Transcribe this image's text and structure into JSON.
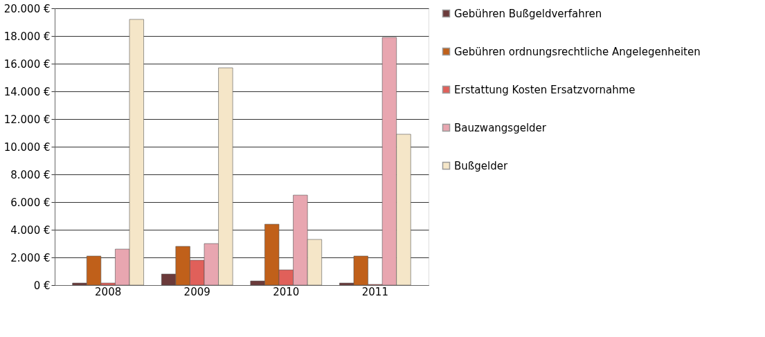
{
  "chart_data": {
    "type": "bar",
    "categories": [
      "2008",
      "2009",
      "2010",
      "2011"
    ],
    "series": [
      {
        "name": "Gebühren Bußgeldverfahren",
        "color": "#6b3a3a",
        "values": [
          150,
          800,
          300,
          150
        ]
      },
      {
        "name": "Gebühren ordnungsrechtliche Angelegenheiten",
        "color": "#c0601a",
        "values": [
          2100,
          2800,
          4400,
          2100
        ]
      },
      {
        "name": "Erstattung Kosten Ersatzvornahme",
        "color": "#e0605a",
        "values": [
          150,
          1800,
          1100,
          50
        ]
      },
      {
        "name": "Bauzwangsgelder",
        "color": "#e8a6b0",
        "values": [
          2600,
          3000,
          6500,
          17900
        ]
      },
      {
        "name": "Bußgelder",
        "color": "#f5e6c8",
        "values": [
          19200,
          15700,
          3300,
          10900
        ]
      }
    ],
    "ylim": [
      0,
      20000
    ],
    "yticks": [
      {
        "value": 0,
        "label": "0 €"
      },
      {
        "value": 2000,
        "label": "2.000 €"
      },
      {
        "value": 4000,
        "label": "4.000 €"
      },
      {
        "value": 6000,
        "label": "6.000 €"
      },
      {
        "value": 8000,
        "label": "8.000 €"
      },
      {
        "value": 10000,
        "label": "10.000 €"
      },
      {
        "value": 12000,
        "label": "12.000 €"
      },
      {
        "value": 14000,
        "label": "14.000 €"
      },
      {
        "value": 16000,
        "label": "16.000 €"
      },
      {
        "value": 18000,
        "label": "18.000 €"
      },
      {
        "value": 20000,
        "label": "20.000 €"
      }
    ],
    "grid": "y",
    "legend": "right"
  }
}
